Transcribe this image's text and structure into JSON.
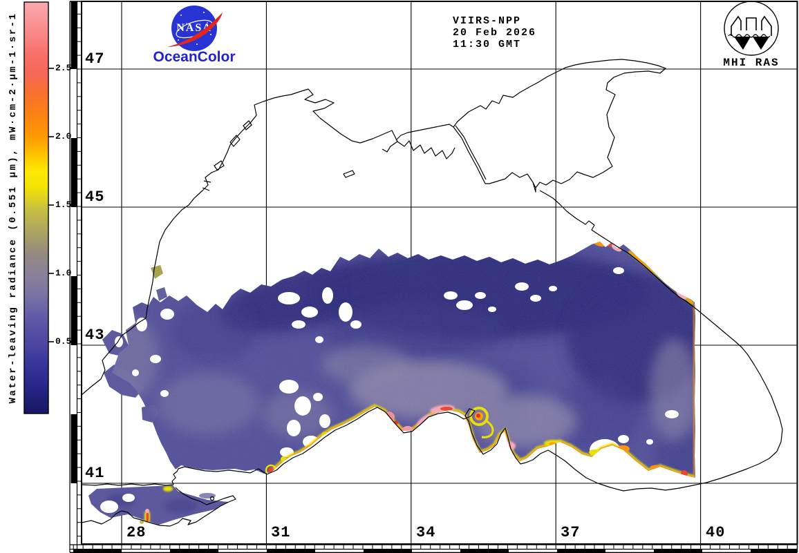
{
  "header": {
    "satellite": "VIIRS-NPP",
    "date": "20 Feb 2026",
    "time": "11:30 GMT"
  },
  "branding": {
    "nasa_wordmark": "NASA",
    "oceancolor": "OceanColor",
    "mhi_ras": "MHI RAS",
    "nasa_blue": "#2833d4",
    "nasa_red": "#e1271e",
    "oceancolor_blue": "#2323cc"
  },
  "colorbar": {
    "label": "Water-leaving radiance (0.551 μm), mW·cm-2·μm-1·sr-1",
    "ticks": [
      "2.5",
      "2.0",
      "1.5",
      "1.0",
      "0.5"
    ],
    "stops": [
      {
        "o": 0,
        "c": "#f9a9ae"
      },
      {
        "o": 4,
        "c": "#f9989b"
      },
      {
        "o": 9,
        "c": "#f8827f"
      },
      {
        "o": 13,
        "c": "#f76f66"
      },
      {
        "o": 17,
        "c": "#f6685c"
      },
      {
        "o": 22,
        "c": "#f9702f"
      },
      {
        "o": 27,
        "c": "#fb8113"
      },
      {
        "o": 33,
        "c": "#fe9b01"
      },
      {
        "o": 37,
        "c": "#fec301"
      },
      {
        "o": 41,
        "c": "#ffe803"
      },
      {
        "o": 45,
        "c": "#f4e403"
      },
      {
        "o": 50,
        "c": "#c9c13d"
      },
      {
        "o": 55,
        "c": "#b0a85c"
      },
      {
        "o": 61,
        "c": "#948b7e"
      },
      {
        "o": 66,
        "c": "#8a8198"
      },
      {
        "o": 71,
        "c": "#7b74a3"
      },
      {
        "o": 77,
        "c": "#6059a7"
      },
      {
        "o": 83,
        "c": "#4b47a2"
      },
      {
        "o": 88,
        "c": "#38359b"
      },
      {
        "o": 93,
        "c": "#28278a"
      },
      {
        "o": 100,
        "c": "#171763"
      }
    ]
  },
  "graticule": {
    "lat_labels": [
      "47",
      "45",
      "43",
      "41"
    ],
    "lon_labels": [
      "28",
      "31",
      "34",
      "37",
      "40"
    ]
  }
}
